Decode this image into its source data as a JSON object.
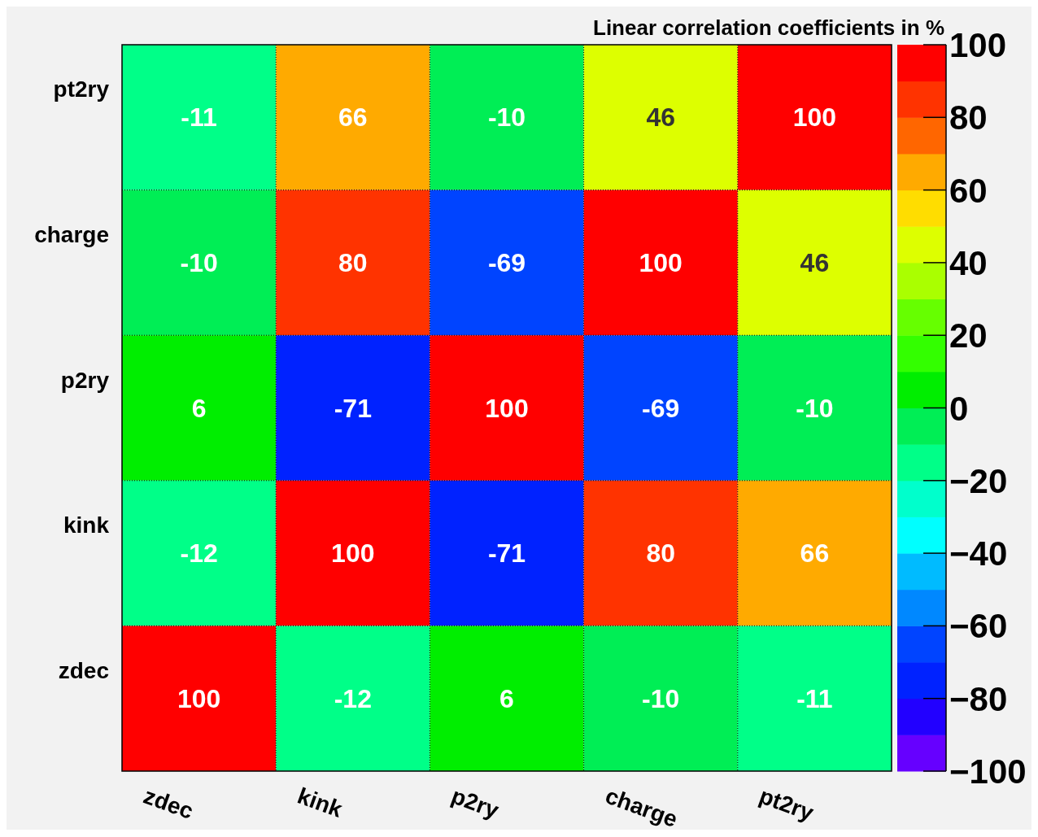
{
  "chart_data": {
    "type": "heatmap",
    "clabel": "Linear correlation coefficients in %",
    "categories": [
      "zdec",
      "kink",
      "p2ry",
      "charge",
      "pt2ry"
    ],
    "y_categories": [
      "pt2ry",
      "charge",
      "p2ry",
      "kink",
      "zdec"
    ],
    "cells": [
      [
        -11,
        66,
        -10,
        46,
        100
      ],
      [
        -10,
        80,
        -69,
        100,
        46
      ],
      [
        6,
        -71,
        100,
        -69,
        -10
      ],
      [
        -12,
        100,
        -71,
        80,
        66
      ],
      [
        100,
        -12,
        6,
        -10,
        -11
      ]
    ],
    "clim": [
      -100,
      100
    ],
    "cticks": [
      {
        "value": -100,
        "label": "−100"
      },
      {
        "value": -80,
        "label": "−80"
      },
      {
        "value": -60,
        "label": "−60"
      },
      {
        "value": -40,
        "label": "−40"
      },
      {
        "value": -20,
        "label": "−20"
      },
      0,
      20,
      40,
      60,
      80,
      100
    ],
    "colors": [
      "#6600ff",
      "#2200ff",
      "#0022ff",
      "#0044ff",
      "#0088ff",
      "#00bbff",
      "#00ffff",
      "#00ffcc",
      "#00ff88",
      "#00ee55",
      "#00ee00",
      "#33ff00",
      "#66ff00",
      "#aaff00",
      "#ddff00",
      "#ffdd00",
      "#ffaa00",
      "#ff6600",
      "#ff3300",
      "#ff0000"
    ],
    "data_labels": true,
    "grid": true
  }
}
